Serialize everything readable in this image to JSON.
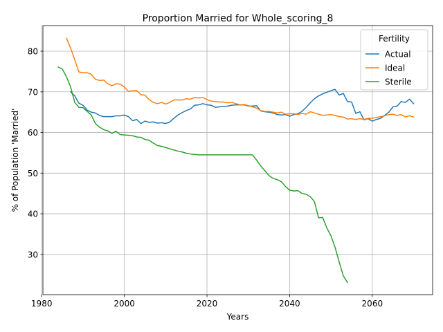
{
  "chart_data": {
    "type": "line",
    "title": "Proportion Married for Whole_scoring_8",
    "xlabel": "Years",
    "ylabel": "% of Population 'Married'",
    "xlim": [
      1980.3,
      2074.6
    ],
    "ylim": [
      20.1,
      86.3
    ],
    "xticks": [
      1980,
      2000,
      2020,
      2040,
      2060
    ],
    "yticks": [
      30,
      40,
      50,
      60,
      70,
      80
    ],
    "grid": true,
    "legend": {
      "title": "Fertility",
      "placement": "upper right"
    },
    "series": [
      {
        "name": "Actual",
        "color": "#1f77b4",
        "x": [
          1987,
          1988,
          1989,
          1990,
          1991,
          1992,
          1993,
          1994,
          1995,
          1996,
          1997,
          1998,
          1999,
          2000,
          2001,
          2002,
          2003,
          2004,
          2005,
          2006,
          2007,
          2008,
          2009,
          2010,
          2011,
          2012,
          2013,
          2014,
          2015,
          2016,
          2017,
          2018,
          2019,
          2020,
          2021,
          2022,
          2023,
          2024,
          2025,
          2026,
          2027,
          2028,
          2029,
          2030,
          2031,
          2032,
          2033,
          2034,
          2035,
          2036,
          2037,
          2038,
          2039,
          2040,
          2041,
          2042,
          2043,
          2044,
          2045,
          2046,
          2047,
          2048,
          2049,
          2050,
          2051,
          2052,
          2053,
          2054,
          2055,
          2056,
          2057,
          2058,
          2059,
          2060,
          2061,
          2062,
          2063,
          2064,
          2065,
          2066,
          2067,
          2068,
          2069,
          2070
        ],
        "y": [
          70.0,
          69.0,
          67.2,
          66.7,
          65.5,
          65.0,
          64.8,
          64.2,
          63.9,
          63.9,
          63.9,
          64.1,
          64.1,
          64.3,
          63.9,
          62.9,
          63.2,
          62.2,
          62.8,
          62.5,
          62.6,
          62.3,
          62.4,
          62.2,
          62.6,
          63.5,
          64.3,
          64.9,
          65.4,
          65.8,
          66.7,
          66.8,
          67.1,
          66.8,
          66.7,
          66.2,
          66.3,
          66.4,
          66.5,
          66.7,
          66.8,
          66.8,
          66.8,
          66.5,
          66.5,
          66.6,
          65.3,
          65.1,
          65.0,
          64.8,
          64.4,
          64.3,
          64.4,
          64.0,
          64.4,
          64.6,
          65.2,
          66.2,
          67.3,
          68.3,
          69.0,
          69.5,
          69.9,
          70.3,
          70.6,
          69.2,
          69.6,
          67.6,
          67.5,
          64.7,
          65.1,
          63.1,
          63.4,
          62.8,
          63.2,
          63.5,
          64.2,
          65.0,
          66.3,
          66.5,
          67.6,
          67.4,
          68.2,
          67.1
        ]
      },
      {
        "name": "Ideal",
        "color": "#ff7f0e",
        "x": [
          1986,
          1987,
          1988,
          1989,
          1990,
          1991,
          1992,
          1993,
          1994,
          1995,
          1996,
          1997,
          1998,
          1999,
          2000,
          2001,
          2002,
          2003,
          2004,
          2005,
          2006,
          2007,
          2008,
          2009,
          2010,
          2011,
          2012,
          2013,
          2014,
          2015,
          2016,
          2017,
          2018,
          2019,
          2020,
          2021,
          2022,
          2023,
          2024,
          2025,
          2026,
          2027,
          2028,
          2029,
          2030,
          2031,
          2032,
          2033,
          2034,
          2035,
          2036,
          2037,
          2038,
          2039,
          2040,
          2041,
          2042,
          2043,
          2044,
          2045,
          2046,
          2047,
          2048,
          2049,
          2050,
          2051,
          2052,
          2053,
          2054,
          2055,
          2056,
          2057,
          2058,
          2059,
          2060,
          2061,
          2062,
          2063,
          2064,
          2065,
          2066,
          2067,
          2068,
          2069,
          2070
        ],
        "y": [
          83.2,
          80.8,
          77.9,
          74.9,
          74.7,
          74.7,
          74.3,
          73.1,
          72.8,
          72.9,
          72.0,
          71.5,
          72.0,
          71.9,
          71.2,
          70.1,
          70.3,
          70.3,
          69.3,
          69.2,
          68.1,
          67.4,
          67.1,
          67.4,
          67.0,
          67.4,
          68.0,
          68.0,
          68.0,
          68.3,
          68.2,
          68.6,
          68.5,
          68.6,
          68.1,
          67.7,
          67.6,
          67.5,
          67.5,
          67.3,
          67.4,
          67.1,
          66.8,
          66.9,
          66.6,
          66.3,
          66.0,
          65.4,
          65.2,
          65.2,
          65.0,
          64.8,
          65.0,
          64.5,
          64.6,
          64.6,
          64.4,
          64.7,
          64.5,
          65.1,
          64.8,
          64.5,
          64.2,
          64.3,
          64.4,
          64.2,
          63.9,
          63.8,
          63.3,
          63.4,
          63.2,
          63.4,
          63.2,
          63.5,
          63.5,
          63.7,
          63.9,
          64.1,
          64.4,
          64.5,
          64.2,
          64.4,
          63.8,
          64.1,
          63.8
        ]
      },
      {
        "name": "Sterile",
        "color": "#2ca02c",
        "x": [
          1984,
          1985,
          1986,
          1987,
          1988,
          1989,
          1990,
          1991,
          1992,
          1993,
          1994,
          1995,
          1996,
          1997,
          1998,
          1999,
          2000,
          2001,
          2002,
          2003,
          2004,
          2005,
          2006,
          2007,
          2008,
          2009,
          2010,
          2011,
          2012,
          2013,
          2014,
          2015,
          2016,
          2017,
          2018,
          2019,
          2020,
          2021,
          2022,
          2023,
          2024,
          2025,
          2026,
          2027,
          2028,
          2029,
          2030,
          2031,
          2032,
          2033,
          2034,
          2035,
          2036,
          2037,
          2038,
          2039,
          2040,
          2041,
          2042,
          2043,
          2044,
          2045,
          2046,
          2047,
          2048,
          2049,
          2050,
          2051,
          2052,
          2053,
          2054
        ],
        "y": [
          76.1,
          75.6,
          73.7,
          71.2,
          67.4,
          66.2,
          66.1,
          65.2,
          64.3,
          62.2,
          61.3,
          60.7,
          60.4,
          59.8,
          60.3,
          59.5,
          59.4,
          59.3,
          59.2,
          58.9,
          58.8,
          58.3,
          58.1,
          57.4,
          56.8,
          56.6,
          56.3,
          56.0,
          55.7,
          55.4,
          55.2,
          54.9,
          54.7,
          54.6,
          54.5,
          54.5,
          54.5,
          54.5,
          54.5,
          54.5,
          54.5,
          54.5,
          54.5,
          54.5,
          54.5,
          54.5,
          54.5,
          54.5,
          53.2,
          51.8,
          50.6,
          49.4,
          48.7,
          48.4,
          47.9,
          46.7,
          45.8,
          45.6,
          45.7,
          45.0,
          44.8,
          44.2,
          43.0,
          39.0,
          39.1,
          36.5,
          34.6,
          31.7,
          28.1,
          24.7,
          23.1
        ]
      }
    ]
  }
}
